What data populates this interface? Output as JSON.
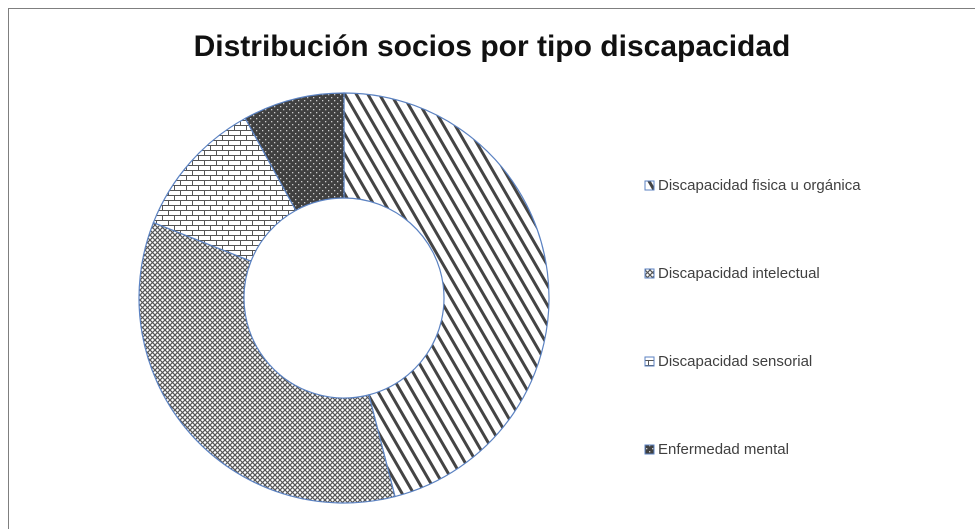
{
  "chart_data": {
    "type": "donut",
    "title": "Distribución socios por tipo discapacidad",
    "categories": [
      "Discapacidad fisica u orgánica",
      "Discapacidad intelectual",
      "Discapacidad sensorial",
      "Enfermedad mental"
    ],
    "values": [
      46,
      35,
      11,
      8
    ]
  }
}
